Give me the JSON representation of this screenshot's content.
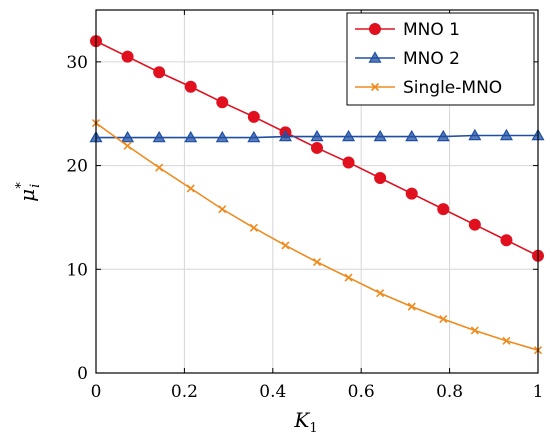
{
  "chart_data": {
    "type": "line",
    "title": "",
    "xlabel": "K",
    "xlabel_sub": "1",
    "ylabel": "μ",
    "ylabel_sub": "i",
    "ylabel_sup": "*",
    "xlim": [
      0,
      1
    ],
    "ylim": [
      0,
      35
    ],
    "xticks": [
      0,
      0.2,
      0.4,
      0.6,
      0.8,
      1
    ],
    "xtick_labels": [
      "0",
      "0.2",
      "0.4",
      "0.6",
      "0.8",
      "1"
    ],
    "yticks": [
      0,
      10,
      20,
      30
    ],
    "ytick_labels": [
      "0",
      "10",
      "20",
      "30"
    ],
    "grid": true,
    "legend_position": "top-right",
    "x": [
      0,
      0.0714,
      0.1429,
      0.2143,
      0.2857,
      0.3571,
      0.4286,
      0.5,
      0.5714,
      0.6429,
      0.7143,
      0.7857,
      0.8571,
      0.9286,
      1
    ],
    "series": [
      {
        "name": "MNO 1",
        "color": "#e0101f",
        "marker": "circle",
        "values": [
          32.0,
          30.5,
          29.0,
          27.6,
          26.1,
          24.7,
          23.2,
          21.7,
          20.3,
          18.8,
          17.3,
          15.8,
          14.3,
          12.8,
          11.3
        ]
      },
      {
        "name": "MNO 2",
        "color": "#1f4fa3",
        "marker": "triangle",
        "values": [
          22.7,
          22.7,
          22.7,
          22.7,
          22.7,
          22.7,
          22.8,
          22.8,
          22.8,
          22.8,
          22.8,
          22.8,
          22.9,
          22.9,
          22.9
        ]
      },
      {
        "name": "Single-MNO",
        "color": "#f08a1d",
        "marker": "x",
        "values": [
          24.1,
          21.9,
          19.8,
          17.8,
          15.8,
          14.0,
          12.3,
          10.7,
          9.2,
          7.7,
          6.4,
          5.2,
          4.1,
          3.1,
          2.2
        ]
      }
    ]
  }
}
